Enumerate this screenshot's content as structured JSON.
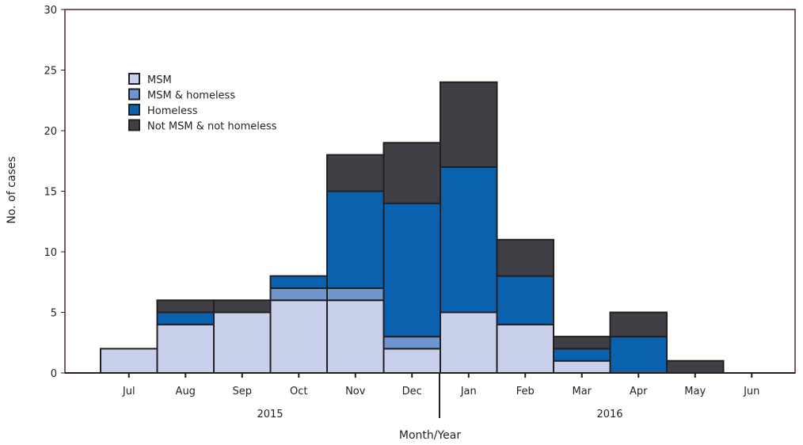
{
  "chart_data": {
    "type": "bar",
    "stacked": true,
    "title": "",
    "xlabel": "Month/Year",
    "ylabel": "No. of cases",
    "ylim": [
      0,
      30
    ],
    "yticks": [
      0,
      5,
      10,
      15,
      20,
      25,
      30
    ],
    "categories": [
      "Jul",
      "Aug",
      "Sep",
      "Oct",
      "Nov",
      "Dec",
      "Jan",
      "Feb",
      "Mar",
      "Apr",
      "May",
      "Jun"
    ],
    "year_groups": [
      {
        "label": "2015",
        "months": [
          "Jul",
          "Aug",
          "Sep",
          "Oct",
          "Nov",
          "Dec"
        ]
      },
      {
        "label": "2016",
        "months": [
          "Jan",
          "Feb",
          "Mar",
          "Apr",
          "May",
          "Jun"
        ]
      }
    ],
    "series": [
      {
        "name": "MSM",
        "color": "#c8d0ec",
        "values": [
          2,
          4,
          5,
          6,
          6,
          2,
          5,
          4,
          1,
          0,
          0,
          0
        ]
      },
      {
        "name": "MSM & homeless",
        "color": "#6f95cf",
        "values": [
          0,
          0,
          0,
          1,
          1,
          1,
          0,
          0,
          0,
          0,
          0,
          0
        ]
      },
      {
        "name": "Homeless",
        "color": "#0a62ae",
        "values": [
          0,
          1,
          0,
          1,
          8,
          11,
          12,
          4,
          1,
          3,
          0,
          0
        ]
      },
      {
        "name": "Not MSM & not homeless",
        "color": "#3f3f45",
        "values": [
          0,
          1,
          1,
          0,
          3,
          5,
          7,
          3,
          1,
          2,
          1,
          0
        ]
      }
    ],
    "legend_placement": "top-left",
    "grid": false
  }
}
